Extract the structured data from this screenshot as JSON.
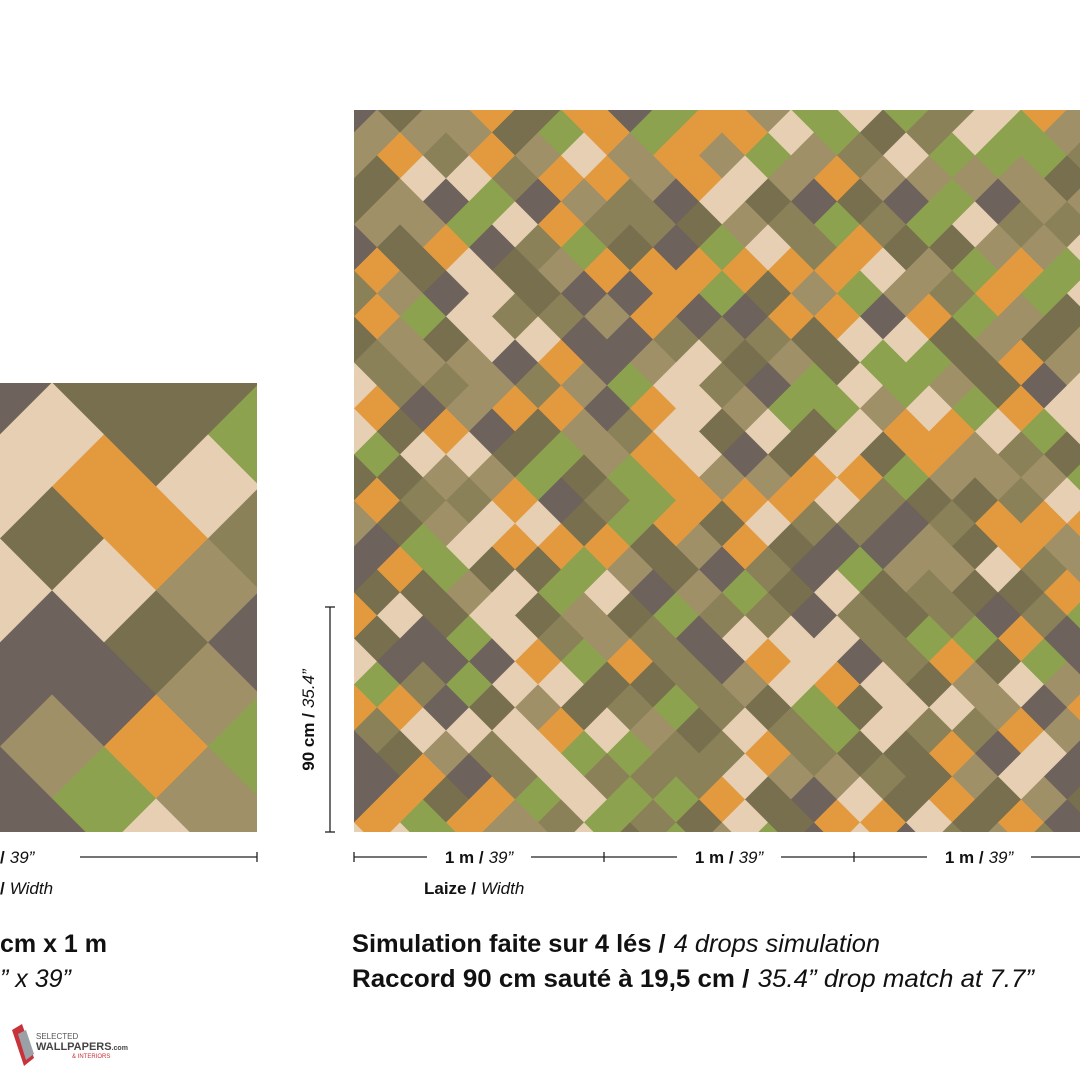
{
  "left_panel": {
    "width_dim": {
      "bold": "/",
      "italic": "39”"
    },
    "laize": {
      "regular": "/",
      "italic": "Width"
    },
    "size_line1": "cm x 1 m",
    "size_line2": "” x 39”"
  },
  "right_panel": {
    "height_dim": {
      "bold": "90 cm /",
      "italic": "35.4”"
    },
    "width_dims": [
      {
        "bold": "1 m /",
        "italic": "39”"
      },
      {
        "bold": "1 m /",
        "italic": "39”"
      },
      {
        "bold": "1 m /",
        "italic": "39”"
      }
    ],
    "laize": {
      "bold": "Laize /",
      "italic": "Width"
    },
    "caption": [
      {
        "bold": "Simulation faite sur 4 lés /",
        "italic": "4 drops simulation"
      },
      {
        "bold": "Raccord 90 cm sauté à 19,5 cm /",
        "italic": "35.4” drop match at 7.7”"
      }
    ]
  },
  "logo": {
    "line1": "SELECTED",
    "line2": "WALLPAPERS",
    "suffix": ".com",
    "line3": "& INTERIORS"
  }
}
